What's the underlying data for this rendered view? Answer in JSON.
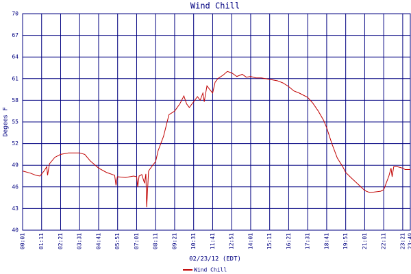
{
  "chart_data": {
    "type": "line",
    "title": "Wind Chill",
    "x_label": "02/23/12 (EDT)",
    "y_label": "Degees F",
    "x": [
      "00:01",
      "00:30",
      "00:50",
      "01:05",
      "01:20",
      "01:30",
      "01:33",
      "01:40",
      "02:00",
      "02:21",
      "02:50",
      "03:31",
      "03:50",
      "04:10",
      "04:41",
      "05:10",
      "05:40",
      "05:45",
      "05:50",
      "06:20",
      "06:50",
      "07:01",
      "07:05",
      "07:10",
      "07:20",
      "07:30",
      "07:35",
      "07:38",
      "07:45",
      "08:00",
      "08:11",
      "08:20",
      "08:40",
      "09:00",
      "09:21",
      "09:40",
      "09:55",
      "10:05",
      "10:15",
      "10:31",
      "10:45",
      "10:55",
      "11:05",
      "11:10",
      "11:20",
      "11:30",
      "11:41",
      "11:50",
      "12:00",
      "12:20",
      "12:35",
      "12:51",
      "13:10",
      "13:30",
      "13:45",
      "14:01",
      "14:20",
      "14:40",
      "15:11",
      "15:40",
      "16:00",
      "16:21",
      "16:40",
      "17:00",
      "17:31",
      "17:50",
      "18:10",
      "18:30",
      "18:41",
      "19:00",
      "19:20",
      "19:40",
      "19:51",
      "20:10",
      "20:30",
      "20:50",
      "21:01",
      "21:20",
      "21:40",
      "22:00",
      "22:11",
      "22:20",
      "22:30",
      "22:38",
      "22:42",
      "22:48",
      "23:00",
      "23:21",
      "23:30",
      "23:49"
    ],
    "series": [
      {
        "name": "Wind Chill",
        "color": "#c00000",
        "values": [
          48.2,
          47.9,
          47.6,
          47.5,
          48.2,
          48.8,
          47.6,
          49.2,
          50.1,
          50.5,
          50.7,
          50.7,
          50.5,
          49.6,
          48.6,
          48.0,
          47.6,
          46.2,
          47.4,
          47.3,
          47.5,
          47.4,
          46.0,
          47.5,
          47.7,
          46.5,
          47.8,
          43.2,
          48.2,
          49.0,
          49.5,
          51.0,
          53.0,
          56.0,
          56.5,
          57.5,
          58.6,
          57.5,
          57.0,
          57.8,
          58.5,
          58.0,
          59.0,
          57.8,
          60.0,
          59.5,
          59.0,
          60.5,
          61.0,
          61.5,
          62.0,
          61.8,
          61.3,
          61.6,
          61.2,
          61.3,
          61.1,
          61.1,
          60.9,
          60.7,
          60.4,
          59.9,
          59.3,
          59.0,
          58.4,
          57.6,
          56.5,
          55.2,
          54.2,
          52.0,
          50.0,
          48.8,
          48.0,
          47.3,
          46.6,
          45.9,
          45.5,
          45.2,
          45.3,
          45.4,
          45.6,
          46.5,
          47.5,
          48.6,
          47.4,
          48.8,
          48.8,
          48.6,
          48.4,
          48.4
        ]
      }
    ],
    "xlim": [
      "00:01",
      "23:49"
    ],
    "xticks": [
      "00:01",
      "01:11",
      "02:21",
      "03:31",
      "04:41",
      "05:51",
      "07:01",
      "08:11",
      "09:21",
      "10:31",
      "11:41",
      "12:51",
      "14:01",
      "15:11",
      "16:21",
      "17:31",
      "18:41",
      "19:51",
      "21:01",
      "22:11",
      "23:21",
      "23:49"
    ],
    "ylim": [
      40,
      70
    ],
    "yticks": [
      40,
      43,
      46,
      49,
      52,
      55,
      58,
      61,
      64,
      67,
      70
    ],
    "grid": true
  }
}
